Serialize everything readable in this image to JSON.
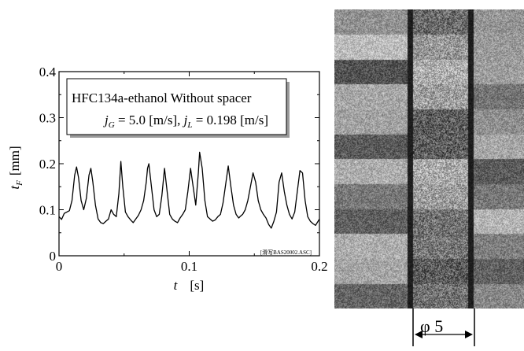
{
  "chart_data": {
    "type": "line",
    "title_lines": [
      "HFC134a-ethanol Without spacer",
      "j_G = 5.0 [m/s], j_L = 0.198 [m/s]"
    ],
    "annotation_line1": "HFC134a-ethanol Without spacer",
    "annotation_line2": {
      "jg_symbol": "j",
      "jg_sub": "G",
      "jg_value": " = 5.0 [m/s], ",
      "jl_symbol": "j",
      "jl_sub": "L",
      "jl_value": " = 0.198 [m/s]"
    },
    "ylabel": {
      "symbol": "t",
      "sub": "F",
      "unit": "[mm]"
    },
    "xlabel": {
      "symbol": "t",
      "unit": "[s]"
    },
    "file_tag": "[滑写BAS20002.ASC]",
    "xlim": [
      0,
      0.2
    ],
    "ylim": [
      0,
      0.4
    ],
    "xticks": [
      0,
      0.1,
      0.2
    ],
    "xtick_labels": [
      "0",
      "0.1",
      "0.2"
    ],
    "yticks": [
      0,
      0.1,
      0.2,
      0.3,
      0.4
    ],
    "ytick_labels": [
      "0",
      "0.1",
      "0.2",
      "0.3",
      "0.4"
    ],
    "grid": false,
    "series": [
      {
        "x": [
          0,
          0.002,
          0.004,
          0.006,
          0.008,
          0.01,
          0.012,
          0.0135,
          0.015,
          0.017,
          0.019,
          0.021,
          0.023,
          0.0245,
          0.026,
          0.028,
          0.03,
          0.032,
          0.034,
          0.036,
          0.038,
          0.04,
          0.042,
          0.044,
          0.046,
          0.0475,
          0.049,
          0.051,
          0.053,
          0.055,
          0.057,
          0.059,
          0.061,
          0.063,
          0.065,
          0.067,
          0.068,
          0.069,
          0.071,
          0.073,
          0.075,
          0.077,
          0.079,
          0.081,
          0.083,
          0.085,
          0.087,
          0.089,
          0.091,
          0.093,
          0.095,
          0.097,
          0.099,
          0.101,
          0.103,
          0.105,
          0.107,
          0.108,
          0.11,
          0.112,
          0.114,
          0.116,
          0.118,
          0.12,
          0.122,
          0.124,
          0.126,
          0.128,
          0.13,
          0.132,
          0.134,
          0.136,
          0.138,
          0.139,
          0.141,
          0.143,
          0.145,
          0.147,
          0.149,
          0.151,
          0.153,
          0.155,
          0.157,
          0.159,
          0.161,
          0.163,
          0.165,
          0.167,
          0.169,
          0.171,
          0.173,
          0.175,
          0.177,
          0.179,
          0.181,
          0.183,
          0.185,
          0.187,
          0.189,
          0.191,
          0.193,
          0.195,
          0.197,
          0.199,
          0.2
        ],
        "y": [
          0.085,
          0.079,
          0.092,
          0.095,
          0.098,
          0.12,
          0.175,
          0.193,
          0.17,
          0.12,
          0.1,
          0.125,
          0.175,
          0.19,
          0.16,
          0.11,
          0.08,
          0.072,
          0.07,
          0.075,
          0.08,
          0.1,
          0.09,
          0.085,
          0.135,
          0.205,
          0.15,
          0.095,
          0.085,
          0.078,
          0.072,
          0.08,
          0.088,
          0.1,
          0.12,
          0.16,
          0.19,
          0.2,
          0.15,
          0.1,
          0.085,
          0.09,
          0.13,
          0.19,
          0.14,
          0.09,
          0.08,
          0.075,
          0.072,
          0.082,
          0.09,
          0.1,
          0.14,
          0.19,
          0.15,
          0.11,
          0.18,
          0.225,
          0.19,
          0.12,
          0.085,
          0.08,
          0.075,
          0.078,
          0.085,
          0.09,
          0.115,
          0.155,
          0.195,
          0.15,
          0.11,
          0.09,
          0.082,
          0.085,
          0.09,
          0.1,
          0.12,
          0.15,
          0.18,
          0.16,
          0.12,
          0.1,
          0.09,
          0.082,
          0.068,
          0.06,
          0.075,
          0.095,
          0.16,
          0.18,
          0.14,
          0.11,
          0.09,
          0.08,
          0.095,
          0.14,
          0.185,
          0.18,
          0.12,
          0.085,
          0.075,
          0.07,
          0.066,
          0.075,
          0.08
        ]
      }
    ]
  },
  "diameter_label": "φ 5",
  "photo_colors": {
    "wall": "#1a1a1a",
    "frame": "#000000"
  }
}
